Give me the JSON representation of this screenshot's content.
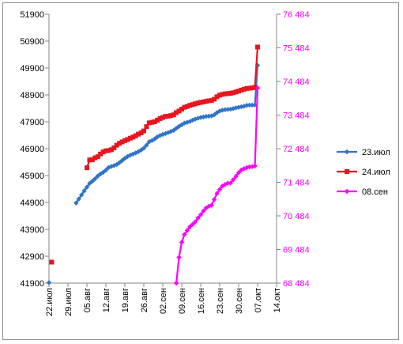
{
  "chart_data": {
    "type": "line",
    "title": "",
    "xlabel": "",
    "ylabel": "",
    "x_axis": {
      "tick_labels": [
        "22.июл",
        "29.июл",
        "05.авг",
        "12.авг",
        "19.авг",
        "26.авг",
        "02.сен",
        "09.сен",
        "16.сен",
        "23.сен",
        "30.сен",
        "07.окт",
        "14.окт"
      ],
      "range": [
        "22.июл",
        "14.окт"
      ],
      "tick_step_days": 7
    },
    "y_axis_left": {
      "tick_labels": [
        "41900",
        "42900",
        "43900",
        "44900",
        "45900",
        "46900",
        "47900",
        "48900",
        "49900",
        "50900",
        "51900"
      ],
      "range": [
        41900,
        51900
      ],
      "color": "#000000"
    },
    "y_axis_right": {
      "tick_labels": [
        "68 484",
        "69 484",
        "70 484",
        "71 484",
        "72 484",
        "73 484",
        "74 484",
        "75 484",
        "76 484"
      ],
      "range": [
        68484,
        76484
      ],
      "color": "#ff00ff"
    },
    "grid": false,
    "legend_position": "right",
    "series": [
      {
        "name": "23.июл",
        "axis": "left",
        "color": "#2e75c6",
        "marker": "diamond",
        "points": [
          [
            "22.июл",
            41920
          ],
          [
            "01.авг",
            44880
          ],
          [
            "02.авг",
            45030
          ],
          [
            "03.авг",
            45180
          ],
          [
            "04.авг",
            45330
          ],
          [
            "05.авг",
            45470
          ],
          [
            "06.авг",
            45610
          ],
          [
            "07.авг",
            45690
          ],
          [
            "08.авг",
            45780
          ],
          [
            "09.авг",
            45880
          ],
          [
            "10.авг",
            45960
          ],
          [
            "11.авг",
            46020
          ],
          [
            "12.авг",
            46100
          ],
          [
            "13.авг",
            46200
          ],
          [
            "14.авг",
            46240
          ],
          [
            "15.авг",
            46270
          ],
          [
            "16.авг",
            46310
          ],
          [
            "17.авг",
            46380
          ],
          [
            "18.авг",
            46460
          ],
          [
            "19.авг",
            46540
          ],
          [
            "20.авг",
            46610
          ],
          [
            "21.авг",
            46660
          ],
          [
            "22.авг",
            46700
          ],
          [
            "23.авг",
            46740
          ],
          [
            "24.авг",
            46790
          ],
          [
            "25.авг",
            46850
          ],
          [
            "26.авг",
            46920
          ],
          [
            "27.авг",
            47030
          ],
          [
            "28.авг",
            47160
          ],
          [
            "29.авг",
            47200
          ],
          [
            "30.авг",
            47260
          ],
          [
            "31.авг",
            47340
          ],
          [
            "01.сен",
            47390
          ],
          [
            "02.сен",
            47430
          ],
          [
            "03.сен",
            47460
          ],
          [
            "04.сен",
            47500
          ],
          [
            "05.сен",
            47540
          ],
          [
            "06.сен",
            47580
          ],
          [
            "07.сен",
            47660
          ],
          [
            "08.сен",
            47730
          ],
          [
            "09.сен",
            47790
          ],
          [
            "10.сен",
            47850
          ],
          [
            "11.сен",
            47880
          ],
          [
            "12.сен",
            47910
          ],
          [
            "13.сен",
            47960
          ],
          [
            "14.сен",
            48000
          ],
          [
            "15.сен",
            48030
          ],
          [
            "16.сен",
            48060
          ],
          [
            "17.сен",
            48080
          ],
          [
            "18.сен",
            48100
          ],
          [
            "19.сен",
            48110
          ],
          [
            "20.сен",
            48120
          ],
          [
            "21.сен",
            48160
          ],
          [
            "22.сен",
            48240
          ],
          [
            "23.сен",
            48300
          ],
          [
            "24.сен",
            48330
          ],
          [
            "25.сен",
            48350
          ],
          [
            "26.сен",
            48360
          ],
          [
            "27.сен",
            48370
          ],
          [
            "28.сен",
            48390
          ],
          [
            "29.сен",
            48420
          ],
          [
            "30.сен",
            48440
          ],
          [
            "01.окт",
            48460
          ],
          [
            "02.окт",
            48480
          ],
          [
            "03.окт",
            48510
          ],
          [
            "04.окт",
            48520
          ],
          [
            "05.окт",
            48520
          ],
          [
            "06.окт",
            48530
          ],
          [
            "07.окт",
            50000
          ]
        ]
      },
      {
        "name": "24.июл",
        "axis": "left",
        "color": "#e8141e",
        "marker": "square",
        "points": [
          [
            "23.июл",
            42680
          ],
          [
            "05.авг",
            46190
          ],
          [
            "06.авг",
            46480
          ],
          [
            "07.авг",
            46490
          ],
          [
            "08.авг",
            46560
          ],
          [
            "09.авг",
            46600
          ],
          [
            "10.авг",
            46700
          ],
          [
            "11.авг",
            46780
          ],
          [
            "12.авг",
            46820
          ],
          [
            "13.авг",
            46830
          ],
          [
            "14.авг",
            46860
          ],
          [
            "15.авг",
            46930
          ],
          [
            "16.авг",
            47030
          ],
          [
            "17.авг",
            47100
          ],
          [
            "18.авг",
            47150
          ],
          [
            "19.авг",
            47200
          ],
          [
            "20.авг",
            47240
          ],
          [
            "21.авг",
            47290
          ],
          [
            "22.авг",
            47330
          ],
          [
            "23.авг",
            47380
          ],
          [
            "24.авг",
            47440
          ],
          [
            "25.авг",
            47490
          ],
          [
            "26.авг",
            47560
          ],
          [
            "27.авг",
            47720
          ],
          [
            "28.авг",
            47860
          ],
          [
            "29.авг",
            47880
          ],
          [
            "30.авг",
            47900
          ],
          [
            "31.авг",
            47960
          ],
          [
            "01.сен",
            48020
          ],
          [
            "02.сен",
            48060
          ],
          [
            "03.сен",
            48100
          ],
          [
            "04.сен",
            48110
          ],
          [
            "05.сен",
            48130
          ],
          [
            "06.сен",
            48160
          ],
          [
            "07.сен",
            48240
          ],
          [
            "08.сен",
            48300
          ],
          [
            "09.сен",
            48370
          ],
          [
            "10.сен",
            48440
          ],
          [
            "11.сен",
            48470
          ],
          [
            "12.сен",
            48510
          ],
          [
            "13.сен",
            48540
          ],
          [
            "14.сен",
            48570
          ],
          [
            "15.сен",
            48600
          ],
          [
            "16.сен",
            48620
          ],
          [
            "17.сен",
            48640
          ],
          [
            "18.сен",
            48660
          ],
          [
            "19.сен",
            48680
          ],
          [
            "20.сен",
            48690
          ],
          [
            "21.сен",
            48740
          ],
          [
            "22.сен",
            48830
          ],
          [
            "23.сен",
            48890
          ],
          [
            "24.сен",
            48920
          ],
          [
            "25.сен",
            48940
          ],
          [
            "26.сен",
            48950
          ],
          [
            "27.сен",
            48960
          ],
          [
            "28.сен",
            48980
          ],
          [
            "29.сен",
            49010
          ],
          [
            "30.сен",
            49040
          ],
          [
            "01.окт",
            49080
          ],
          [
            "02.окт",
            49110
          ],
          [
            "03.окт",
            49140
          ],
          [
            "04.окт",
            49150
          ],
          [
            "05.окт",
            49160
          ],
          [
            "06.окт",
            49180
          ],
          [
            "07.окт",
            50680
          ]
        ]
      },
      {
        "name": "08.сен",
        "axis": "right",
        "color": "#ff00ff",
        "marker": "diamond",
        "points": [
          [
            "07.сен",
            68484
          ],
          [
            "08.сен",
            69250
          ],
          [
            "09.сен",
            69700
          ],
          [
            "10.сен",
            69930
          ],
          [
            "11.сен",
            70050
          ],
          [
            "12.сен",
            70160
          ],
          [
            "13.сен",
            70230
          ],
          [
            "14.сен",
            70310
          ],
          [
            "15.сен",
            70420
          ],
          [
            "16.сен",
            70520
          ],
          [
            "17.сен",
            70630
          ],
          [
            "18.сен",
            70720
          ],
          [
            "19.сен",
            70770
          ],
          [
            "20.сен",
            70800
          ],
          [
            "21.сен",
            70970
          ],
          [
            "22.сен",
            71150
          ],
          [
            "23.сен",
            71270
          ],
          [
            "24.сен",
            71370
          ],
          [
            "25.сен",
            71420
          ],
          [
            "26.сен",
            71460
          ],
          [
            "27.сен",
            71460
          ],
          [
            "28.сен",
            71560
          ],
          [
            "29.сен",
            71660
          ],
          [
            "30.сен",
            71770
          ],
          [
            "01.окт",
            71850
          ],
          [
            "02.окт",
            71890
          ],
          [
            "03.окт",
            71920
          ],
          [
            "04.окт",
            71940
          ],
          [
            "05.окт",
            71950
          ],
          [
            "06.окт",
            71970
          ],
          [
            "07.окт",
            74290
          ]
        ]
      }
    ]
  }
}
